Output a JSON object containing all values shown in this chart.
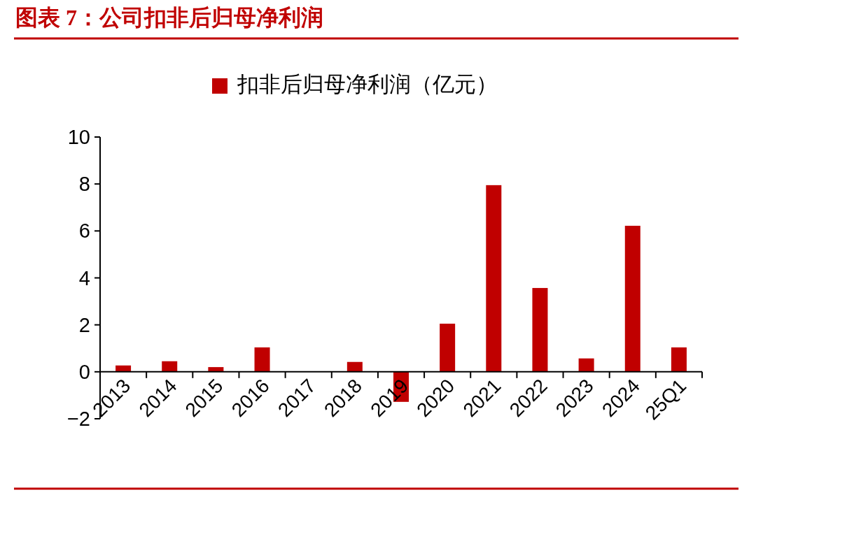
{
  "chart_data": {
    "type": "bar",
    "title": "图表 7：公司扣非后归母净利润",
    "categories": [
      "2013",
      "2014",
      "2015",
      "2016",
      "2017",
      "2018",
      "2019",
      "2020",
      "2021",
      "2022",
      "2023",
      "2024",
      "25Q1"
    ],
    "series": [
      {
        "name": "扣非后归母净利润（亿元）",
        "color": "#c00000",
        "values": [
          0.27,
          0.45,
          0.2,
          1.04,
          0,
          0.42,
          -1.28,
          2.05,
          7.95,
          3.57,
          0.57,
          6.22,
          1.04
        ]
      }
    ],
    "ylim": [
      -2,
      10
    ],
    "yticks": [
      {
        "value": -2,
        "label": "−2"
      },
      0,
      2,
      4,
      6,
      8,
      10
    ],
    "grid": false,
    "legend": "top"
  }
}
